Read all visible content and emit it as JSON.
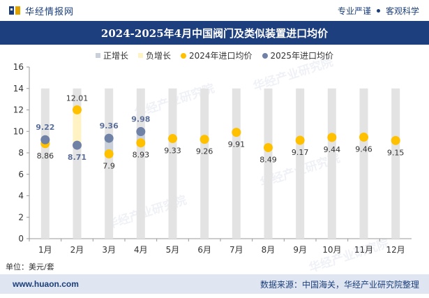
{
  "header": {
    "brand": "华经情报网",
    "slogan_left": "专业严谨",
    "slogan_right": "客观科学"
  },
  "footer": {
    "unit": "单位：美元/套",
    "site": "www.huaon.com",
    "source": "数据来源：中国海关，华经产业研究院整理"
  },
  "watermark": {
    "text": "华经产业研究院",
    "url": "www.huaon.com"
  },
  "colors": {
    "header_bg": "#1e3f7e",
    "bar_neutral": "#e3e3e3",
    "bar_increase": "#c9d0da",
    "bar_decrease": "#fff3c4",
    "series_2024": "#ffc000",
    "series_2025": "#7081a6"
  },
  "chart_data": {
    "type": "line",
    "title": "2024-2025年4月中国阀门及类似装置进口均价",
    "xlabel": "",
    "ylabel": "",
    "ylim": [
      0,
      16
    ],
    "yticks": [
      0,
      2,
      4,
      6,
      8,
      10,
      12,
      14,
      16
    ],
    "categories": [
      "1月",
      "2月",
      "3月",
      "4月",
      "5月",
      "6月",
      "7月",
      "8月",
      "9月",
      "10月",
      "11月",
      "12月"
    ],
    "legend": [
      {
        "name": "正增长",
        "kind": "bar",
        "color": "#c9d0da"
      },
      {
        "name": "负增长",
        "kind": "bar",
        "color": "#fff3c4"
      },
      {
        "name": "2024年进口均价",
        "kind": "point",
        "color": "#ffc000"
      },
      {
        "name": "2025年进口均价",
        "kind": "point",
        "color": "#7081a6"
      }
    ],
    "series": [
      {
        "name": "2024年进口均价",
        "values": [
          8.86,
          12.01,
          7.9,
          8.93,
          9.33,
          9.26,
          9.91,
          8.49,
          9.17,
          9.44,
          9.46,
          9.15
        ]
      },
      {
        "name": "2025年进口均价",
        "values": [
          9.22,
          8.71,
          9.36,
          9.98,
          null,
          null,
          null,
          null,
          null,
          null,
          null,
          null
        ]
      }
    ],
    "labels_2024": [
      "8.86",
      "12.01",
      "7.9",
      "8.93",
      "9.33",
      "9.26",
      "9.91",
      "8.49",
      "9.17",
      "9.44",
      "9.46",
      "9.15"
    ],
    "labels_2025": [
      "9.22",
      "8.71",
      "9.36",
      "9.98"
    ],
    "change_bars": [
      {
        "from": 8.86,
        "to": 9.22,
        "kind": "increase"
      },
      {
        "from": 12.01,
        "to": 8.71,
        "kind": "decrease"
      },
      {
        "from": 7.9,
        "to": 9.36,
        "kind": "increase"
      },
      {
        "from": 8.93,
        "to": 9.98,
        "kind": "increase"
      }
    ]
  }
}
